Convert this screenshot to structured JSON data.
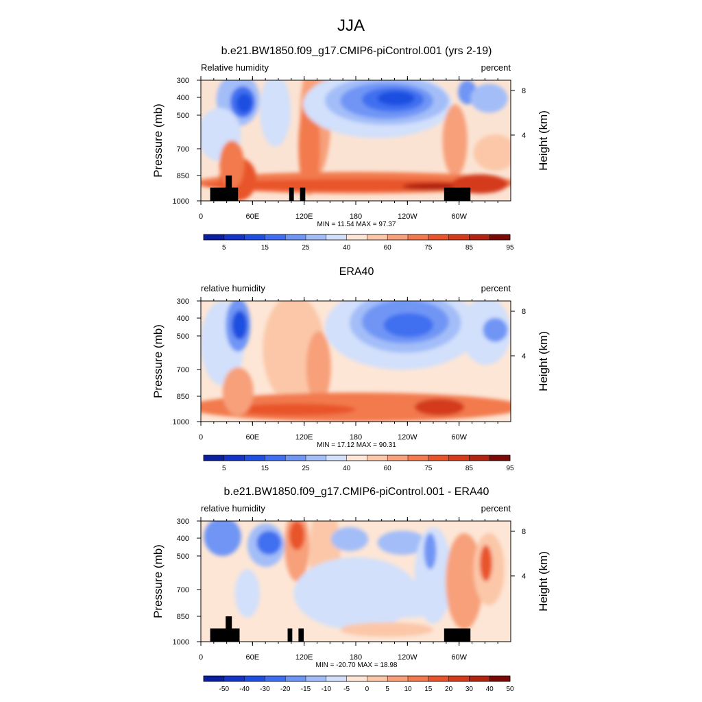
{
  "page_title": "JJA",
  "chart_data": [
    {
      "type": "heatmap",
      "title": "b.e21.BW1850.f09_g17.CMIP6-piControl.001 (yrs 2-19)",
      "left_label": "Relative humidity",
      "right_label": "percent",
      "ylabel": "Pressure (mb)",
      "ylabel_right": "Height (km)",
      "x_ticks": [
        "0",
        "60E",
        "120E",
        "180",
        "120W",
        "60W"
      ],
      "y_ticks": [
        "300",
        "400",
        "500",
        "700",
        "850",
        "1000"
      ],
      "y2_ticks": [
        "8",
        "4"
      ],
      "min_max": "MIN =  11.54  MAX =  97.37",
      "colorbar_labels": [
        "5",
        "15",
        "25",
        "40",
        "60",
        "75",
        "85",
        "95"
      ],
      "has_topography_mask": true
    },
    {
      "type": "heatmap",
      "title": "ERA40",
      "left_label": "relative humidity",
      "right_label": "percent",
      "ylabel": "Pressure (mb)",
      "ylabel_right": "Height (km)",
      "x_ticks": [
        "0",
        "60E",
        "120E",
        "180",
        "120W",
        "60W"
      ],
      "y_ticks": [
        "300",
        "400",
        "500",
        "700",
        "850",
        "1000"
      ],
      "y2_ticks": [
        "8",
        "4"
      ],
      "min_max": "MIN =  17.12  MAX =  90.31",
      "colorbar_labels": [
        "5",
        "15",
        "25",
        "40",
        "60",
        "75",
        "85",
        "95"
      ],
      "has_topography_mask": false
    },
    {
      "type": "heatmap",
      "title": "b.e21.BW1850.f09_g17.CMIP6-piControl.001 - ERA40",
      "left_label": "relative humidity",
      "right_label": "percent",
      "ylabel": "Pressure (mb)",
      "ylabel_right": "Height (km)",
      "x_ticks": [
        "0",
        "60E",
        "120E",
        "180",
        "120W",
        "60W"
      ],
      "y_ticks": [
        "300",
        "400",
        "500",
        "700",
        "850",
        "1000"
      ],
      "y2_ticks": [
        "8",
        "4"
      ],
      "min_max": "MIN = -20.70  MAX =  18.98",
      "colorbar_labels": [
        "-50",
        "-40",
        "-30",
        "-20",
        "-15",
        "-10",
        "-5",
        "0",
        "5",
        "10",
        "15",
        "20",
        "30",
        "40",
        "50"
      ],
      "has_topography_mask": true
    }
  ],
  "colors": {
    "rh_scale": [
      "#0a1f9e",
      "#1433c7",
      "#1f4fe0",
      "#3f6ff0",
      "#6f95f5",
      "#a3bdf8",
      "#d2e0fb",
      "#fde6d6",
      "#fbc7a8",
      "#f7a07a",
      "#f27a4e",
      "#e9552b",
      "#d43b1a",
      "#b02410",
      "#7a0a06"
    ],
    "diff_scale": [
      "#0a1f9e",
      "#1433c7",
      "#1f4fe0",
      "#3f6ff0",
      "#6f95f5",
      "#a3bdf8",
      "#d2e0fb",
      "#fde6d6",
      "#fbc7a8",
      "#f7a07a",
      "#f27a4e",
      "#e9552b",
      "#d43b1a",
      "#b02410",
      "#7a0a06"
    ],
    "mask": "#000000"
  }
}
